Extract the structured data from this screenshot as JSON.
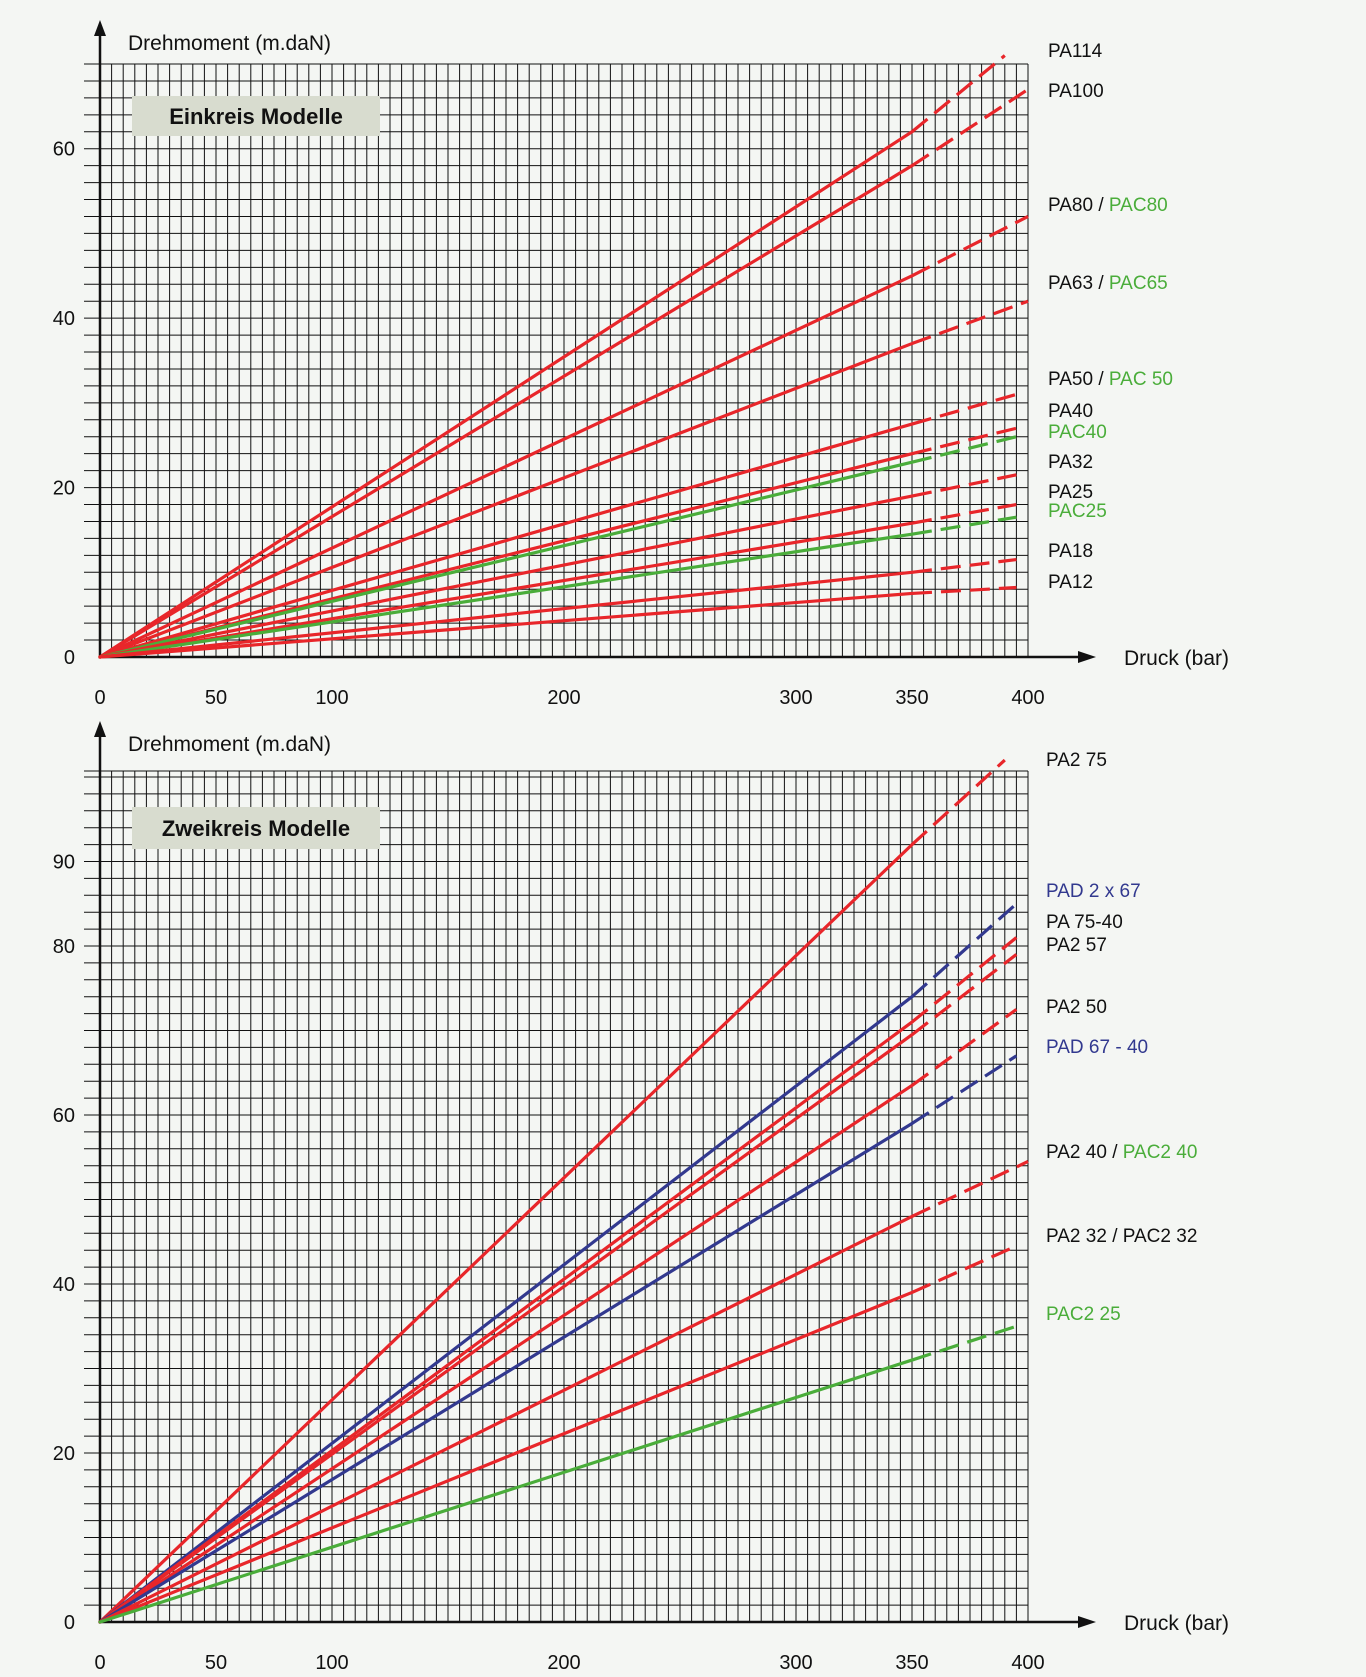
{
  "colors": {
    "red": "#e8262a",
    "green": "#4aad3a",
    "blue": "#32398f",
    "black": "#111111",
    "grid": "#111111",
    "panel_label_bg": "#d8dccf",
    "background": "#f4f6f3"
  },
  "chart_data": [
    {
      "type": "line",
      "panel_label": "Einkreis Modelle",
      "ylabel": "Drehmoment (m.daN)",
      "xlabel": "Druck (bar)",
      "xlim": [
        0,
        400
      ],
      "ylim": [
        0,
        70
      ],
      "x_ticks": [
        0,
        50,
        100,
        200,
        300,
        350,
        400
      ],
      "y_ticks": [
        0,
        20,
        40,
        60
      ],
      "solid_until": 350,
      "series": [
        {
          "color": "red",
          "values_at": [
            [
              0,
              0
            ],
            [
              350,
              62
            ],
            [
              390,
              71
            ]
          ],
          "label": [
            {
              "text": "PA114",
              "color": "black"
            }
          ]
        },
        {
          "color": "red",
          "values_at": [
            [
              0,
              0
            ],
            [
              350,
              58
            ],
            [
              400,
              67
            ]
          ],
          "label": [
            {
              "text": "PA100",
              "color": "black"
            }
          ]
        },
        {
          "color": "red",
          "values_at": [
            [
              0,
              0
            ],
            [
              350,
              45
            ],
            [
              400,
              52
            ]
          ],
          "label": [
            {
              "text": "PA80",
              "color": "black"
            },
            {
              "text": " / ",
              "color": "black"
            },
            {
              "text": "PAC80",
              "color": "green"
            }
          ]
        },
        {
          "color": "red",
          "values_at": [
            [
              0,
              0
            ],
            [
              350,
              37
            ],
            [
              400,
              42
            ]
          ],
          "label": [
            {
              "text": "PA63",
              "color": "black"
            },
            {
              "text": " / ",
              "color": "black"
            },
            {
              "text": "PAC65",
              "color": "green"
            }
          ]
        },
        {
          "color": "red",
          "values_at": [
            [
              0,
              0
            ],
            [
              350,
              27.5
            ],
            [
              395,
              31
            ]
          ],
          "label": [
            {
              "text": "PA50",
              "color": "black"
            },
            {
              "text": " / ",
              "color": "black"
            },
            {
              "text": "PAC 50",
              "color": "green"
            }
          ]
        },
        {
          "color": "red",
          "values_at": [
            [
              0,
              0
            ],
            [
              350,
              24
            ],
            [
              395,
              27
            ]
          ],
          "label": [
            {
              "text": "PA40",
              "color": "black"
            }
          ]
        },
        {
          "color": "green",
          "values_at": [
            [
              0,
              0
            ],
            [
              350,
              23
            ],
            [
              395,
              26
            ]
          ],
          "label": [
            {
              "text": "PAC40",
              "color": "green"
            }
          ]
        },
        {
          "color": "red",
          "values_at": [
            [
              0,
              0
            ],
            [
              350,
              19
            ],
            [
              395,
              21.5
            ]
          ],
          "label": [
            {
              "text": "PA32",
              "color": "black"
            }
          ]
        },
        {
          "color": "red",
          "values_at": [
            [
              0,
              0
            ],
            [
              350,
              15.8
            ],
            [
              395,
              18
            ]
          ],
          "label": [
            {
              "text": "PA25",
              "color": "black"
            }
          ]
        },
        {
          "color": "green",
          "values_at": [
            [
              0,
              0
            ],
            [
              350,
              14.5
            ],
            [
              395,
              16.5
            ]
          ],
          "label": [
            {
              "text": "PAC25",
              "color": "green"
            }
          ]
        },
        {
          "color": "red",
          "values_at": [
            [
              0,
              0
            ],
            [
              350,
              10
            ],
            [
              395,
              11.5
            ]
          ],
          "label": [
            {
              "text": "PA18",
              "color": "black"
            }
          ]
        },
        {
          "color": "red",
          "values_at": [
            [
              0,
              0
            ],
            [
              350,
              7.5
            ],
            [
              395,
              8.2
            ]
          ],
          "label": [
            {
              "text": "PA12",
              "color": "black"
            }
          ]
        }
      ]
    },
    {
      "type": "line",
      "panel_label": "Zweikreis Modelle",
      "ylabel": "Drehmoment (m.daN)",
      "xlabel": "Druck (bar)",
      "xlim": [
        0,
        400
      ],
      "ylim": [
        0,
        100
      ],
      "x_ticks": [
        0,
        50,
        100,
        200,
        300,
        350,
        400
      ],
      "y_ticks": [
        0,
        20,
        40,
        60,
        80,
        90
      ],
      "solid_until": 350,
      "series": [
        {
          "color": "red",
          "values_at": [
            [
              0,
              0
            ],
            [
              350,
              92
            ],
            [
              390,
              102
            ]
          ],
          "label": [
            {
              "text": "PA2 75",
              "color": "black"
            }
          ]
        },
        {
          "color": "blue",
          "values_at": [
            [
              0,
              0
            ],
            [
              350,
              74
            ],
            [
              395,
              85
            ]
          ],
          "label": [
            {
              "text": "PAD 2 x 67",
              "color": "blue"
            }
          ]
        },
        {
          "color": "red",
          "values_at": [
            [
              0,
              0
            ],
            [
              350,
              71
            ],
            [
              395,
              81
            ]
          ],
          "label": [
            {
              "text": "PA 75-40",
              "color": "black"
            }
          ]
        },
        {
          "color": "red",
          "values_at": [
            [
              0,
              0
            ],
            [
              350,
              69.5
            ],
            [
              395,
              79
            ]
          ],
          "label": [
            {
              "text": "PA2 57",
              "color": "black"
            }
          ]
        },
        {
          "color": "red",
          "values_at": [
            [
              0,
              0
            ],
            [
              350,
              63.5
            ],
            [
              395,
              72.5
            ]
          ],
          "label": [
            {
              "text": "PA2 50",
              "color": "black"
            }
          ]
        },
        {
          "color": "blue",
          "values_at": [
            [
              0,
              0
            ],
            [
              350,
              59
            ],
            [
              395,
              67
            ]
          ],
          "label": [
            {
              "text": "PAD 67 - 40",
              "color": "blue"
            }
          ]
        },
        {
          "color": "red",
          "values_at": [
            [
              0,
              0
            ],
            [
              350,
              48
            ],
            [
              400,
              54.5
            ]
          ],
          "label": [
            {
              "text": "PA2 40",
              "color": "black"
            },
            {
              "text": " / ",
              "color": "black"
            },
            {
              "text": "PAC2 40",
              "color": "green"
            }
          ]
        },
        {
          "color": "red",
          "values_at": [
            [
              0,
              0
            ],
            [
              350,
              39
            ],
            [
              395,
              44.5
            ]
          ],
          "label": [
            {
              "text": "PA2 32 / PAC2 32",
              "color": "black"
            }
          ]
        },
        {
          "color": "green",
          "values_at": [
            [
              0,
              0
            ],
            [
              350,
              31
            ],
            [
              395,
              35
            ]
          ],
          "label": [
            {
              "text": "PAC2 25",
              "color": "green"
            }
          ]
        }
      ]
    }
  ]
}
